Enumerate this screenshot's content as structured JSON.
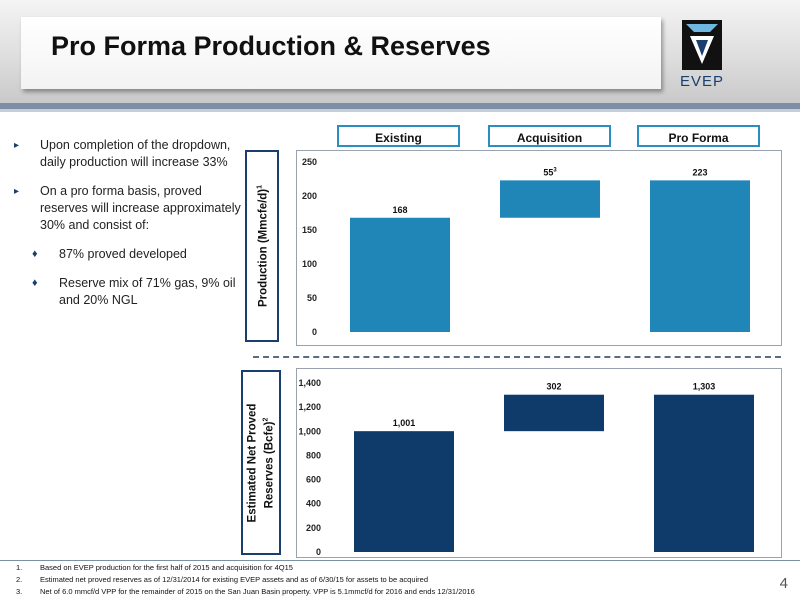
{
  "slide": {
    "title": "Pro Forma Production & Reserves",
    "logo_text": "EVEP",
    "page_number": "4"
  },
  "bullets": [
    {
      "text": "Upon completion of the dropdown, daily production will increase 33%"
    },
    {
      "text": "On a pro forma basis, proved reserves will increase approximately 30% and consist of:"
    }
  ],
  "sub_bullets": [
    {
      "text": "87% proved developed"
    },
    {
      "text": "Reserve mix of 71% gas, 9% oil and 20% NGL"
    }
  ],
  "column_labels": [
    "Existing",
    "Acquisition",
    "Pro Forma"
  ],
  "colors": {
    "production_bar": "#1f86b7",
    "reserves_bar": "#0f3b6a",
    "label_border": "#2a8ec1",
    "accent": "#1a3e6e"
  },
  "chart_data": [
    {
      "type": "bar",
      "subtype": "waterfall",
      "ylabel": "Production (Mmcfe/d)",
      "ylabel_superscript": "1",
      "categories": [
        "Existing",
        "Acquisition",
        "Pro Forma"
      ],
      "bars": [
        {
          "base": 0,
          "value": 168,
          "label": "168",
          "superscript": ""
        },
        {
          "base": 168,
          "value": 55,
          "label": "55",
          "superscript": "3"
        },
        {
          "base": 0,
          "value": 223,
          "label": "223",
          "superscript": ""
        }
      ],
      "ylim": [
        0,
        250
      ],
      "yticks": [
        0,
        50,
        100,
        150,
        200,
        250
      ],
      "ytick_labels": [
        "0",
        "50",
        "100",
        "150",
        "200",
        "250"
      ],
      "grid": false
    },
    {
      "type": "bar",
      "subtype": "waterfall",
      "ylabel": "Estimated Net Proved Reserves (Bcfe)",
      "ylabel_line1": "Estimated Net Proved",
      "ylabel_line2": "Reserves (Bcfe)",
      "ylabel_superscript": "2",
      "categories": [
        "Existing",
        "Acquisition",
        "Pro Forma"
      ],
      "bars": [
        {
          "base": 0,
          "value": 1001,
          "label": "1,001",
          "superscript": ""
        },
        {
          "base": 1001,
          "value": 302,
          "label": "302",
          "superscript": ""
        },
        {
          "base": 0,
          "value": 1303,
          "label": "1,303",
          "superscript": ""
        }
      ],
      "ylim": [
        0,
        1400
      ],
      "yticks": [
        0,
        200,
        400,
        600,
        800,
        1000,
        1200,
        1400
      ],
      "ytick_labels": [
        "0",
        "200",
        "400",
        "600",
        "800",
        "1,000",
        "1,200",
        "1,400"
      ],
      "grid": false
    }
  ],
  "footnotes": [
    {
      "num": "1.",
      "text": "Based on EVEP production for the first half of 2015 and acquisition for 4Q15"
    },
    {
      "num": "2.",
      "text": "Estimated net proved reserves as of 12/31/2014 for existing EVEP assets and as of 6/30/15 for assets to be acquired"
    },
    {
      "num": "3.",
      "text": "Net of 6.0 mmcf/d VPP for the remainder of 2015 on the San Juan Basin property.  VPP is 5.1mmcf/d for 2016 and ends 12/31/2016"
    }
  ]
}
